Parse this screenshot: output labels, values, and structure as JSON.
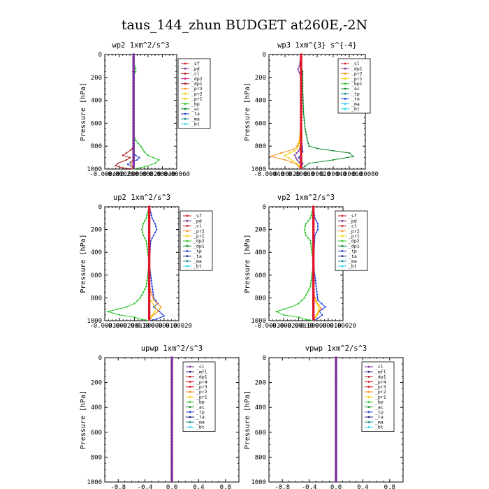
{
  "figure_title": "taus_144_zhun  BUDGET at260E,-2N",
  "colors": {
    "red": "#e0162b",
    "purple": "#7b2f9a",
    "darkred": "#b01818",
    "orange": "#ff8c1a",
    "yellow": "#f5d000",
    "green": "#22c322",
    "darkgreen": "#0a8a2a",
    "blue": "#1c3fd8",
    "teal": "#128c8c",
    "cyan": "#26d4f0",
    "navy": "#1a237e",
    "pink": "#d0207a"
  },
  "chart_data": [
    {
      "type": "line",
      "title": "wp2   1xm^2/s^3",
      "ylabel": "Pressure [hPa]",
      "xlim": [
        -0.0004,
        0.0006
      ],
      "ylim": [
        1000,
        0
      ],
      "xticks": [
        "-0.00040",
        "-0.00020",
        "0.00000",
        "0.00020",
        "0.00040",
        "0.00060"
      ],
      "xtick_values": [
        -0.0004,
        -0.0002,
        0,
        0.0002,
        0.0004,
        0.0006
      ],
      "yticks": [
        0,
        200,
        400,
        600,
        800,
        1000
      ],
      "legend": [
        "_sf",
        "_pd",
        "_cl",
        "_dp2",
        "_dp1",
        "_pr3",
        "_pr2",
        "_pr1",
        "_bp",
        "_ac",
        "_ta",
        "_ma",
        "_bt"
      ],
      "legend_colors": [
        "red",
        "purple",
        "darkred",
        "pink",
        "darkred",
        "orange",
        "yellow",
        "yellow",
        "green",
        "darkgreen",
        "blue",
        "teal",
        "cyan"
      ],
      "series": [
        {
          "name": "_pr1",
          "color": "green",
          "x": [
            0,
            0,
            3e-05,
            3e-05,
            0,
            0,
            0,
            0,
            0,
            3e-05,
            0.0001,
            0.00015,
            0.0002,
            0.00035,
            0.0003,
            0.00015,
            0
          ],
          "y": [
            0,
            80,
            120,
            150,
            180,
            250,
            400,
            600,
            700,
            750,
            800,
            850,
            880,
            920,
            950,
            980,
            1000
          ]
        },
        {
          "name": "_ta",
          "color": "blue",
          "x": [
            0,
            0,
            0,
            0,
            0,
            0,
            0,
            0,
            3e-05,
            8e-05,
            5e-05,
            -4e-05,
            -8e-05,
            -2e-05,
            0
          ],
          "y": [
            0,
            150,
            300,
            500,
            700,
            800,
            840,
            860,
            880,
            900,
            920,
            940,
            960,
            980,
            1000
          ]
        },
        {
          "name": "_cl",
          "color": "darkred",
          "x": [
            0,
            0,
            0,
            0,
            0,
            0,
            -3e-05,
            -0.0001,
            -0.00015,
            -5e-05,
            -0.0001,
            -0.00022,
            -0.00025,
            -0.00015,
            0
          ],
          "y": [
            0,
            150,
            300,
            500,
            700,
            800,
            830,
            860,
            880,
            900,
            920,
            950,
            970,
            990,
            1000
          ]
        },
        {
          "name": "_pr2",
          "color": "orange",
          "x": [
            0,
            0,
            0,
            0,
            0,
            0,
            -2e-05,
            -4e-05,
            -2e-05,
            0
          ],
          "y": [
            0,
            200,
            400,
            600,
            800,
            900,
            930,
            960,
            985,
            1000
          ]
        },
        {
          "name": "_sf",
          "color": "red",
          "x": [
            0,
            0,
            -1e-05,
            0,
            0,
            0,
            0,
            0,
            0
          ],
          "y": [
            0,
            120,
            150,
            180,
            300,
            600,
            800,
            950,
            1000
          ]
        },
        {
          "name": "_pd",
          "color": "purple",
          "x": [
            0,
            0,
            0,
            0,
            0
          ],
          "y": [
            0,
            250,
            500,
            750,
            1000
          ]
        }
      ]
    },
    {
      "type": "line",
      "title": "wp3   1xm^{3} s^{-4}",
      "ylabel": "Pressure [hPa]",
      "xlim": [
        -0.0004,
        0.0008
      ],
      "ylim": [
        1000,
        0
      ],
      "xticks": [
        "-0.00040",
        "-0.00020",
        "0.00000",
        "0.00020",
        "0.00040",
        "0.00060",
        "0.00080"
      ],
      "xtick_values": [
        -0.0004,
        -0.0002,
        0,
        0.0002,
        0.0004,
        0.0006,
        0.0008
      ],
      "yticks": [
        0,
        200,
        400,
        600,
        800,
        1000
      ],
      "legend": [
        "_cl",
        "_dp1",
        "_pr2",
        "_pr1",
        "_bp1",
        "_ac",
        "_tp",
        "_ta",
        "_ma",
        "_bt"
      ],
      "legend_colors": [
        "red",
        "purple",
        "orange",
        "yellow",
        "green",
        "darkgreen",
        "teal",
        "blue",
        "cyan",
        "cyan"
      ],
      "series": [
        {
          "name": "_ac",
          "color": "darkgreen",
          "x": [
            0,
            0,
            2e-05,
            2e-05,
            3e-05,
            5e-05,
            8e-05,
            0.0001,
            0.0002,
            0.0006,
            0.00065,
            0.0004,
            0.0001,
            0
          ],
          "y": [
            0,
            100,
            150,
            300,
            500,
            650,
            750,
            800,
            820,
            860,
            890,
            920,
            950,
            1000
          ]
        },
        {
          "name": "_pr2",
          "color": "orange",
          "x": [
            0,
            0,
            0,
            -2e-05,
            -5e-05,
            -0.0001,
            -0.00025,
            -0.00038,
            -0.0002,
            -5e-05,
            0
          ],
          "y": [
            0,
            300,
            600,
            750,
            800,
            830,
            860,
            890,
            920,
            960,
            1000
          ]
        },
        {
          "name": "_pr1",
          "color": "yellow",
          "x": [
            0,
            0,
            -3e-05,
            -8e-05,
            -0.0002,
            -0.0001,
            -2e-05,
            0
          ],
          "y": [
            0,
            600,
            800,
            840,
            880,
            930,
            970,
            1000
          ]
        },
        {
          "name": "_dp1",
          "color": "purple",
          "x": [
            0,
            -2e-05,
            -4e-05,
            -2e-05,
            0,
            0,
            0,
            -3e-05,
            -8e-05,
            -5e-05,
            0,
            0
          ],
          "y": [
            0,
            100,
            130,
            160,
            200,
            500,
            800,
            840,
            880,
            920,
            960,
            1000
          ]
        },
        {
          "name": "_tp",
          "color": "blue",
          "x": [
            0,
            0,
            0,
            2e-05,
            -3e-05,
            2e-05,
            0
          ],
          "y": [
            0,
            300,
            700,
            850,
            900,
            950,
            1000
          ]
        },
        {
          "name": "_cl",
          "color": "red",
          "x": [
            0,
            0,
            0,
            0,
            0
          ],
          "y": [
            0,
            250,
            500,
            750,
            1000
          ]
        }
      ]
    },
    {
      "type": "line",
      "title": "up2   1xm^2/s^3",
      "ylabel": "Pressure [hPa]",
      "xlim": [
        -0.0003,
        0.0002
      ],
      "ylim": [
        1000,
        0
      ],
      "xticks": [
        "-0.00030",
        "-0.00020",
        "-0.00010",
        "0.00000",
        "0.00010",
        "0.00020"
      ],
      "xtick_values": [
        -0.0003,
        -0.0002,
        -0.0001,
        0,
        0.0001,
        0.0002
      ],
      "yticks": [
        0,
        200,
        400,
        600,
        800,
        1000
      ],
      "legend": [
        "_sf",
        "_pd",
        "_cl",
        "_pr2",
        "_pr1",
        "_dp2",
        "_dp1",
        "_tp",
        "_ta",
        "_ma",
        "_bt"
      ],
      "legend_colors": [
        "red",
        "purple",
        "darkred",
        "orange",
        "yellow",
        "green",
        "darkgreen",
        "blue",
        "navy",
        "teal",
        "cyan"
      ],
      "series": [
        {
          "name": "_dp2",
          "color": "green",
          "x": [
            0,
            -2e-05,
            -4e-05,
            -5e-05,
            -4e-05,
            -2e-05,
            0,
            -2e-05,
            -6e-05,
            -0.0001,
            -0.00015,
            -0.00028,
            -0.0002,
            -0.0001,
            -5e-05,
            0
          ],
          "y": [
            0,
            100,
            150,
            200,
            250,
            300,
            500,
            700,
            800,
            850,
            880,
            920,
            950,
            970,
            990,
            1000
          ]
        },
        {
          "name": "_tp",
          "color": "blue",
          "x": [
            0,
            2e-05,
            4e-05,
            5e-05,
            3e-05,
            1e-05,
            0,
            3e-05,
            6e-05,
            3e-05,
            7e-05,
            0.0001,
            5e-05,
            0
          ],
          "y": [
            0,
            100,
            150,
            200,
            250,
            300,
            500,
            800,
            850,
            880,
            920,
            960,
            985,
            1000
          ]
        },
        {
          "name": "_pr2",
          "color": "orange",
          "x": [
            0,
            0,
            0,
            3e-05,
            8e-05,
            6e-05,
            2e-05,
            0
          ],
          "y": [
            0,
            400,
            700,
            820,
            880,
            920,
            960,
            1000
          ]
        },
        {
          "name": "_pr1",
          "color": "yellow",
          "x": [
            0,
            0,
            0,
            3e-05,
            5e-05,
            2e-05,
            0
          ],
          "y": [
            0,
            500,
            800,
            860,
            900,
            950,
            1000
          ]
        },
        {
          "name": "_sf",
          "color": "red",
          "x": [
            0,
            0,
            0,
            0,
            0
          ],
          "y": [
            0,
            250,
            500,
            750,
            1000
          ]
        }
      ]
    },
    {
      "type": "line",
      "title": "vp2   1xm^2/s^3",
      "ylabel": "Pressure [hPa]",
      "xlim": [
        -0.0003,
        0.0002
      ],
      "ylim": [
        1000,
        0
      ],
      "xticks": [
        "-0.00030",
        "-0.00020",
        "-0.00010",
        "0.00000",
        "0.00010",
        "0.00020"
      ],
      "xtick_values": [
        -0.0003,
        -0.0002,
        -0.0001,
        0,
        0.0001,
        0.0002
      ],
      "yticks": [
        0,
        200,
        400,
        600,
        800,
        1000
      ],
      "legend": [
        "_sf",
        "_pd",
        "_cl",
        "_pr2",
        "_pr1",
        "_dp2",
        "_dp1",
        "_tp",
        "_ta",
        "_ma",
        "_bt"
      ],
      "legend_colors": [
        "red",
        "purple",
        "darkred",
        "orange",
        "yellow",
        "green",
        "darkgreen",
        "blue",
        "navy",
        "teal",
        "cyan"
      ],
      "series": [
        {
          "name": "_dp2",
          "color": "green",
          "x": [
            0,
            -2e-05,
            -5e-05,
            -6e-05,
            -5e-05,
            -2e-05,
            0,
            -2e-05,
            -6e-05,
            -0.0001,
            -0.00015,
            -0.00025,
            -0.0002,
            -0.0001,
            -5e-05,
            0
          ],
          "y": [
            0,
            100,
            150,
            200,
            250,
            300,
            500,
            700,
            800,
            850,
            880,
            920,
            950,
            970,
            990,
            1000
          ]
        },
        {
          "name": "_tp",
          "color": "blue",
          "x": [
            0,
            1e-05,
            3e-05,
            3e-05,
            1e-05,
            0,
            3e-05,
            8e-05,
            4e-05,
            6e-05,
            3e-05,
            0
          ],
          "y": [
            0,
            100,
            150,
            200,
            250,
            500,
            820,
            880,
            920,
            950,
            980,
            1000
          ]
        },
        {
          "name": "_pr2",
          "color": "orange",
          "x": [
            0,
            0,
            0,
            2e-05,
            5e-05,
            3e-05,
            0
          ],
          "y": [
            0,
            400,
            750,
            830,
            890,
            940,
            1000
          ]
        },
        {
          "name": "_pr1",
          "color": "yellow",
          "x": [
            0,
            0,
            0,
            3e-05,
            4e-05,
            2e-05,
            0
          ],
          "y": [
            0,
            500,
            800,
            860,
            900,
            950,
            1000
          ]
        },
        {
          "name": "_sf",
          "color": "red",
          "x": [
            0,
            0,
            0,
            0,
            0
          ],
          "y": [
            0,
            250,
            500,
            750,
            1000
          ]
        }
      ]
    },
    {
      "type": "line",
      "title": "upwp   1xm^2/s^3",
      "ylabel": "Pressure [hPa]",
      "xlim": [
        -1,
        1
      ],
      "ylim": [
        1000,
        0
      ],
      "xticks": [
        "-0.8",
        "-0.4",
        "0.0",
        "0.4",
        "0.8"
      ],
      "xtick_values": [
        -0.8,
        -0.4,
        0,
        0.4,
        0.8
      ],
      "yticks": [
        0,
        200,
        400,
        600,
        800,
        1000
      ],
      "legend": [
        "_cl",
        "_mfl",
        "_dp1",
        "_pr4",
        "_pr3",
        "_pr2",
        "_pr1",
        "_bp",
        "_ac",
        "_tp",
        "_ta",
        "_ma",
        "_bt"
      ],
      "legend_colors": [
        "purple",
        "navy",
        "darkred",
        "red",
        "red",
        "orange",
        "yellow",
        "green",
        "darkgreen",
        "blue",
        "navy",
        "teal",
        "cyan"
      ],
      "series": [
        {
          "name": "_cl",
          "color": "purple",
          "x": [
            0,
            0,
            0,
            0,
            0
          ],
          "y": [
            0,
            250,
            500,
            750,
            1000
          ]
        }
      ]
    },
    {
      "type": "line",
      "title": "vpwp   1xm^2/s^3",
      "ylabel": "Pressure [hPa]",
      "xlim": [
        -1,
        1
      ],
      "ylim": [
        1000,
        0
      ],
      "xticks": [
        "-0.8",
        "-0.4",
        "0.0",
        "0.4",
        "0.8"
      ],
      "xtick_values": [
        -0.8,
        -0.4,
        0,
        0.4,
        0.8
      ],
      "yticks": [
        0,
        200,
        400,
        600,
        800,
        1000
      ],
      "legend": [
        "_cl",
        "_mfl",
        "_dp1",
        "_pr4",
        "_pr3",
        "_pr2",
        "_pr1",
        "_bp",
        "_ac",
        "_tp",
        "_ta",
        "_ma",
        "_bt"
      ],
      "legend_colors": [
        "purple",
        "navy",
        "darkred",
        "red",
        "red",
        "orange",
        "yellow",
        "green",
        "darkgreen",
        "blue",
        "navy",
        "teal",
        "cyan"
      ],
      "series": [
        {
          "name": "_cl",
          "color": "purple",
          "x": [
            0,
            0,
            0,
            0,
            0
          ],
          "y": [
            0,
            250,
            500,
            750,
            1000
          ]
        }
      ]
    }
  ]
}
